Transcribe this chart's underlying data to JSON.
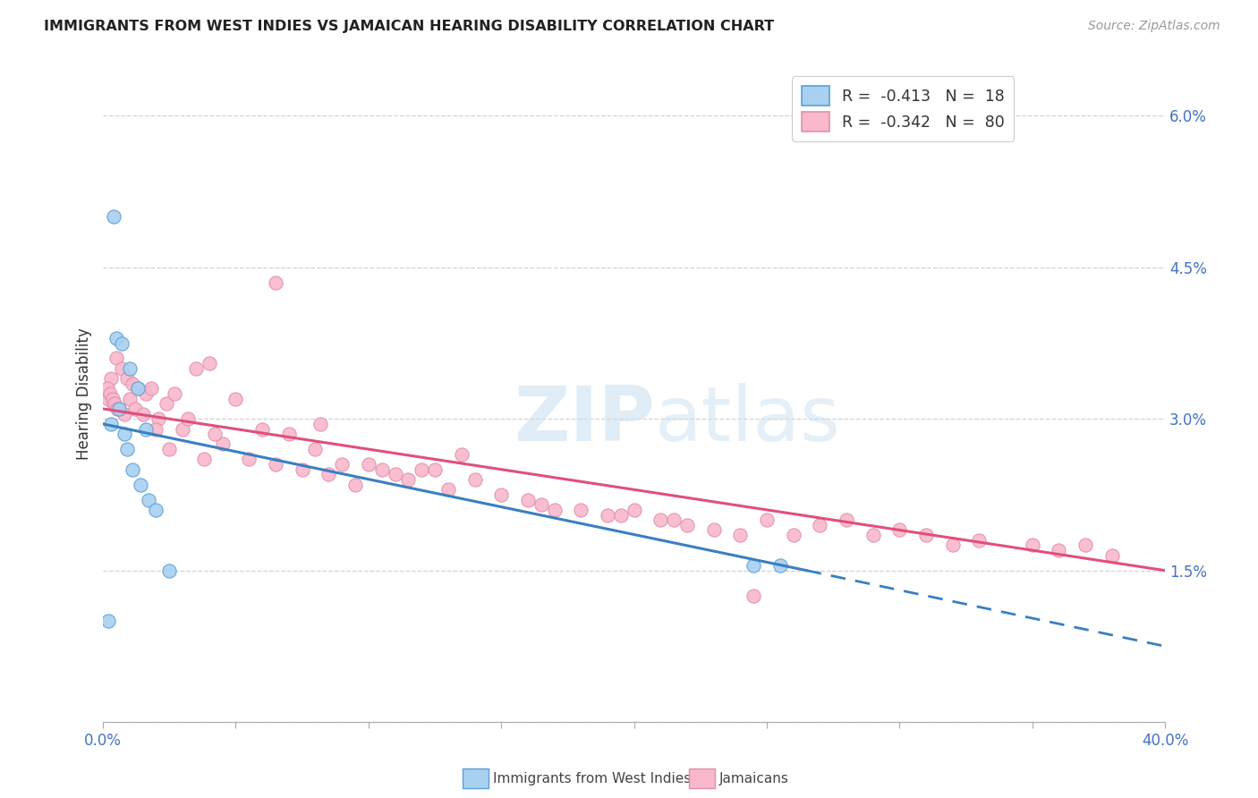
{
  "title": "IMMIGRANTS FROM WEST INDIES VS JAMAICAN HEARING DISABILITY CORRELATION CHART",
  "source": "Source: ZipAtlas.com",
  "ylabel": "Hearing Disability",
  "legend_label_blue": "Immigrants from West Indies",
  "legend_label_pink": "Jamaicans",
  "blue_color": "#a8d0f0",
  "pink_color": "#f9b8cb",
  "blue_edge_color": "#5a9fd4",
  "pink_edge_color": "#e090aa",
  "blue_line_color": "#3a7fc1",
  "pink_line_color": "#e0507a",
  "blue_scatter_x": [
    0.5,
    0.7,
    1.0,
    1.3,
    1.6,
    0.4,
    0.6,
    0.8,
    0.9,
    1.1,
    1.4,
    1.7,
    2.0,
    2.5,
    0.3,
    24.5,
    25.5,
    0.2
  ],
  "blue_scatter_y": [
    3.8,
    3.75,
    3.5,
    3.3,
    2.9,
    5.0,
    3.1,
    2.85,
    2.7,
    2.5,
    2.35,
    2.2,
    2.1,
    1.5,
    2.95,
    1.55,
    1.55,
    1.0
  ],
  "pink_scatter_x": [
    0.3,
    0.5,
    0.7,
    0.9,
    1.1,
    1.3,
    1.6,
    1.8,
    2.1,
    2.4,
    2.7,
    3.0,
    3.5,
    4.0,
    4.5,
    5.0,
    0.4,
    0.6,
    0.8,
    1.0,
    1.2,
    1.5,
    2.0,
    2.5,
    3.2,
    3.8,
    4.2,
    5.5,
    6.0,
    6.5,
    7.0,
    7.5,
    8.0,
    8.5,
    9.0,
    10.0,
    10.5,
    11.0,
    11.5,
    12.0,
    12.5,
    13.0,
    14.0,
    15.0,
    16.0,
    17.0,
    18.0,
    19.0,
    20.0,
    21.0,
    22.0,
    23.0,
    24.0,
    25.0,
    26.0,
    27.0,
    28.0,
    29.0,
    30.0,
    31.0,
    32.0,
    33.0,
    35.0,
    36.0,
    37.0,
    38.0,
    9.5,
    13.5,
    16.5,
    19.5,
    21.5,
    24.5,
    6.5,
    8.2,
    0.2,
    0.15,
    0.25,
    0.35,
    0.45,
    0.55
  ],
  "pink_scatter_y": [
    3.4,
    3.6,
    3.5,
    3.4,
    3.35,
    3.3,
    3.25,
    3.3,
    3.0,
    3.15,
    3.25,
    2.9,
    3.5,
    3.55,
    2.75,
    3.2,
    3.15,
    3.1,
    3.05,
    3.2,
    3.1,
    3.05,
    2.9,
    2.7,
    3.0,
    2.6,
    2.85,
    2.6,
    2.9,
    2.55,
    2.85,
    2.5,
    2.7,
    2.45,
    2.55,
    2.55,
    2.5,
    2.45,
    2.4,
    2.5,
    2.5,
    2.3,
    2.4,
    2.25,
    2.2,
    2.1,
    2.1,
    2.05,
    2.1,
    2.0,
    1.95,
    1.9,
    1.85,
    2.0,
    1.85,
    1.95,
    2.0,
    1.85,
    1.9,
    1.85,
    1.75,
    1.8,
    1.75,
    1.7,
    1.75,
    1.65,
    2.35,
    2.65,
    2.15,
    2.05,
    2.0,
    1.25,
    4.35,
    2.95,
    3.2,
    3.3,
    3.25,
    3.2,
    3.15,
    3.1
  ],
  "xmin": 0.0,
  "xmax": 40.0,
  "ymin": 0.0,
  "ymax": 6.5,
  "ytick_positions": [
    0.0,
    1.5,
    3.0,
    4.5,
    6.0
  ],
  "blue_trend_x0": 0.0,
  "blue_trend_y0": 2.95,
  "blue_trend_x1": 26.5,
  "blue_trend_y1": 1.5,
  "blue_dash_x0": 26.5,
  "blue_dash_y0": 1.5,
  "blue_dash_x1": 40.0,
  "blue_dash_y1": 0.75,
  "pink_trend_x0": 0.0,
  "pink_trend_y0": 3.1,
  "pink_trend_x1": 40.0,
  "pink_trend_y1": 1.5
}
